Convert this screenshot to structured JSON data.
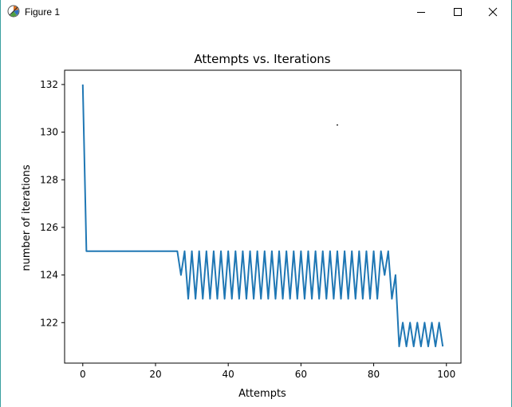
{
  "window": {
    "title": "Figure 1",
    "controls": [
      "minimize",
      "maximize",
      "close"
    ],
    "icon": "matplotlib-figure-icon"
  },
  "chart_data": {
    "type": "line",
    "title": "Attempts vs. Iterations",
    "xlabel": "Attempts",
    "ylabel": "number of iterations",
    "xlim": [
      -5,
      104
    ],
    "ylim": [
      120.3,
      132.6
    ],
    "xticks": [
      0,
      20,
      40,
      60,
      80,
      100
    ],
    "yticks": [
      122,
      124,
      126,
      128,
      130,
      132
    ],
    "grid": false,
    "line_color": "#1f77b4",
    "series": [
      {
        "x": [
          0,
          1,
          2,
          3,
          4,
          5,
          6,
          7,
          8,
          9,
          10,
          11,
          12,
          13,
          14,
          15,
          16,
          17,
          18,
          19,
          20,
          21,
          22,
          23,
          24,
          25,
          26,
          27,
          28,
          29,
          30,
          31,
          32,
          33,
          34,
          35,
          36,
          37,
          38,
          39,
          40,
          41,
          42,
          43,
          44,
          45,
          46,
          47,
          48,
          49,
          50,
          51,
          52,
          53,
          54,
          55,
          56,
          57,
          58,
          59,
          60,
          61,
          62,
          63,
          64,
          65,
          66,
          67,
          68,
          69,
          70,
          71,
          72,
          73,
          74,
          75,
          76,
          77,
          78,
          79,
          80,
          81,
          82,
          83,
          84,
          85,
          86,
          87,
          88,
          89,
          90,
          91,
          92,
          93,
          94,
          95,
          96,
          97,
          98,
          99
        ],
        "y": [
          132,
          125,
          125,
          125,
          125,
          125,
          125,
          125,
          125,
          125,
          125,
          125,
          125,
          125,
          125,
          125,
          125,
          125,
          125,
          125,
          125,
          125,
          125,
          125,
          125,
          125,
          125,
          124,
          125,
          123,
          125,
          123,
          125,
          123,
          125,
          123,
          125,
          123,
          125,
          123,
          125,
          123,
          125,
          123,
          125,
          123,
          125,
          123,
          125,
          123,
          125,
          123,
          125,
          123,
          125,
          123,
          125,
          123,
          125,
          123,
          125,
          123,
          125,
          123,
          125,
          123,
          125,
          123,
          125,
          123,
          125,
          123,
          125,
          123,
          125,
          123,
          125,
          123,
          125,
          123,
          125,
          123,
          125,
          124,
          125,
          123,
          124,
          121,
          122,
          121,
          122,
          121,
          122,
          121,
          122,
          121,
          122,
          121,
          122,
          121
        ]
      }
    ],
    "annotations": [
      {
        "type": "point",
        "x": 70,
        "y": 130.3
      }
    ]
  }
}
